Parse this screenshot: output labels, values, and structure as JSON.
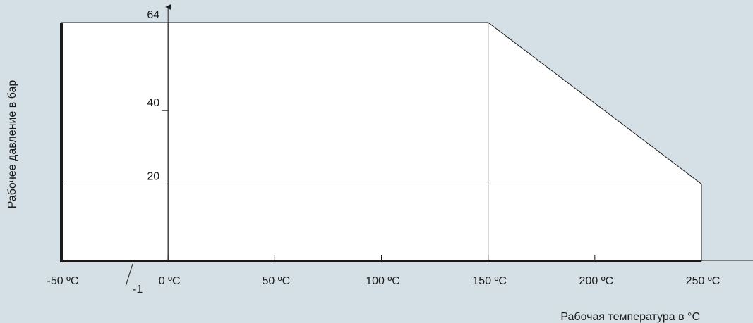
{
  "colors": {
    "background": "#d5e0e6",
    "region_fill": "#ffffff",
    "line": "#1a1a1a"
  },
  "chart_data": {
    "type": "area",
    "title": "",
    "xlabel": "Рабочая температура в °C",
    "ylabel": "Рабочее давление в бар",
    "xlim": [
      -50,
      260
    ],
    "ylim": [
      -1,
      64
    ],
    "x_ticks": [
      {
        "value": -50,
        "label": "-50 ºC"
      },
      {
        "value": 0,
        "label": "0 ºC"
      },
      {
        "value": 50,
        "label": "50 ºC"
      },
      {
        "value": 100,
        "label": "100 ºC"
      },
      {
        "value": 150,
        "label": "150 ºC"
      },
      {
        "value": 200,
        "label": "200 ºC"
      },
      {
        "value": 250,
        "label": "250 ºC"
      }
    ],
    "y_ticks": [
      {
        "value": 64,
        "label": "64"
      },
      {
        "value": 40,
        "label": "40"
      },
      {
        "value": 20,
        "label": "20"
      }
    ],
    "annotation_label": "-1",
    "annotation_value": -1,
    "envelope": [
      {
        "x": -50,
        "y": -1
      },
      {
        "x": -50,
        "y": 64
      },
      {
        "x": 150,
        "y": 64
      },
      {
        "x": 250,
        "y": 20
      },
      {
        "x": 250,
        "y": -1
      }
    ],
    "reference_lines": [
      {
        "orientation": "horizontal",
        "value": 20,
        "from": -50,
        "to": 250
      },
      {
        "orientation": "vertical",
        "value": 150,
        "from": -1,
        "to": 64
      },
      {
        "orientation": "vertical",
        "value": 0,
        "from": -1,
        "to": 64
      }
    ],
    "grid": false,
    "legend": "none"
  }
}
